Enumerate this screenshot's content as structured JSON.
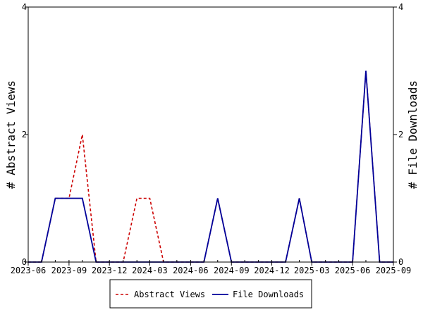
{
  "chart_data": {
    "type": "line",
    "x": [
      "2023-06",
      "2023-07",
      "2023-08",
      "2023-09",
      "2023-10",
      "2023-11",
      "2023-12",
      "2024-01",
      "2024-02",
      "2024-03",
      "2024-04",
      "2024-05",
      "2024-06",
      "2024-07",
      "2024-08",
      "2024-09",
      "2024-10",
      "2024-11",
      "2024-12",
      "2025-01",
      "2025-02",
      "2025-03",
      "2025-04",
      "2025-05",
      "2025-06",
      "2025-07",
      "2025-08",
      "2025-09"
    ],
    "series": [
      {
        "name": "Abstract Views",
        "color": "#cc0000",
        "dash": true,
        "values": [
          0,
          0,
          1,
          1,
          2,
          0,
          0,
          0,
          1,
          1,
          0,
          0,
          0,
          0,
          1,
          0,
          0,
          0,
          0,
          0,
          1,
          0,
          0,
          0,
          0,
          3,
          0,
          0
        ]
      },
      {
        "name": "File Downloads",
        "color": "#000099",
        "dash": false,
        "values": [
          0,
          0,
          1,
          1,
          1,
          0,
          0,
          0,
          0,
          0,
          0,
          0,
          0,
          0,
          1,
          0,
          0,
          0,
          0,
          0,
          1,
          0,
          0,
          0,
          0,
          3,
          0,
          0
        ]
      }
    ],
    "x_ticks": [
      "2023-06",
      "2023-09",
      "2023-12",
      "2024-03",
      "2024-06",
      "2024-09",
      "2024-12",
      "2025-03",
      "2025-06",
      "2025-09"
    ],
    "y_ticks_left": [
      "0",
      "2",
      "4"
    ],
    "y_ticks_right": [
      "0",
      "2",
      "4"
    ],
    "ylim": [
      0,
      4
    ],
    "ylabel_left": "# Abstract Views",
    "ylabel_right": "# File Downloads",
    "legend_position": "bottom"
  }
}
